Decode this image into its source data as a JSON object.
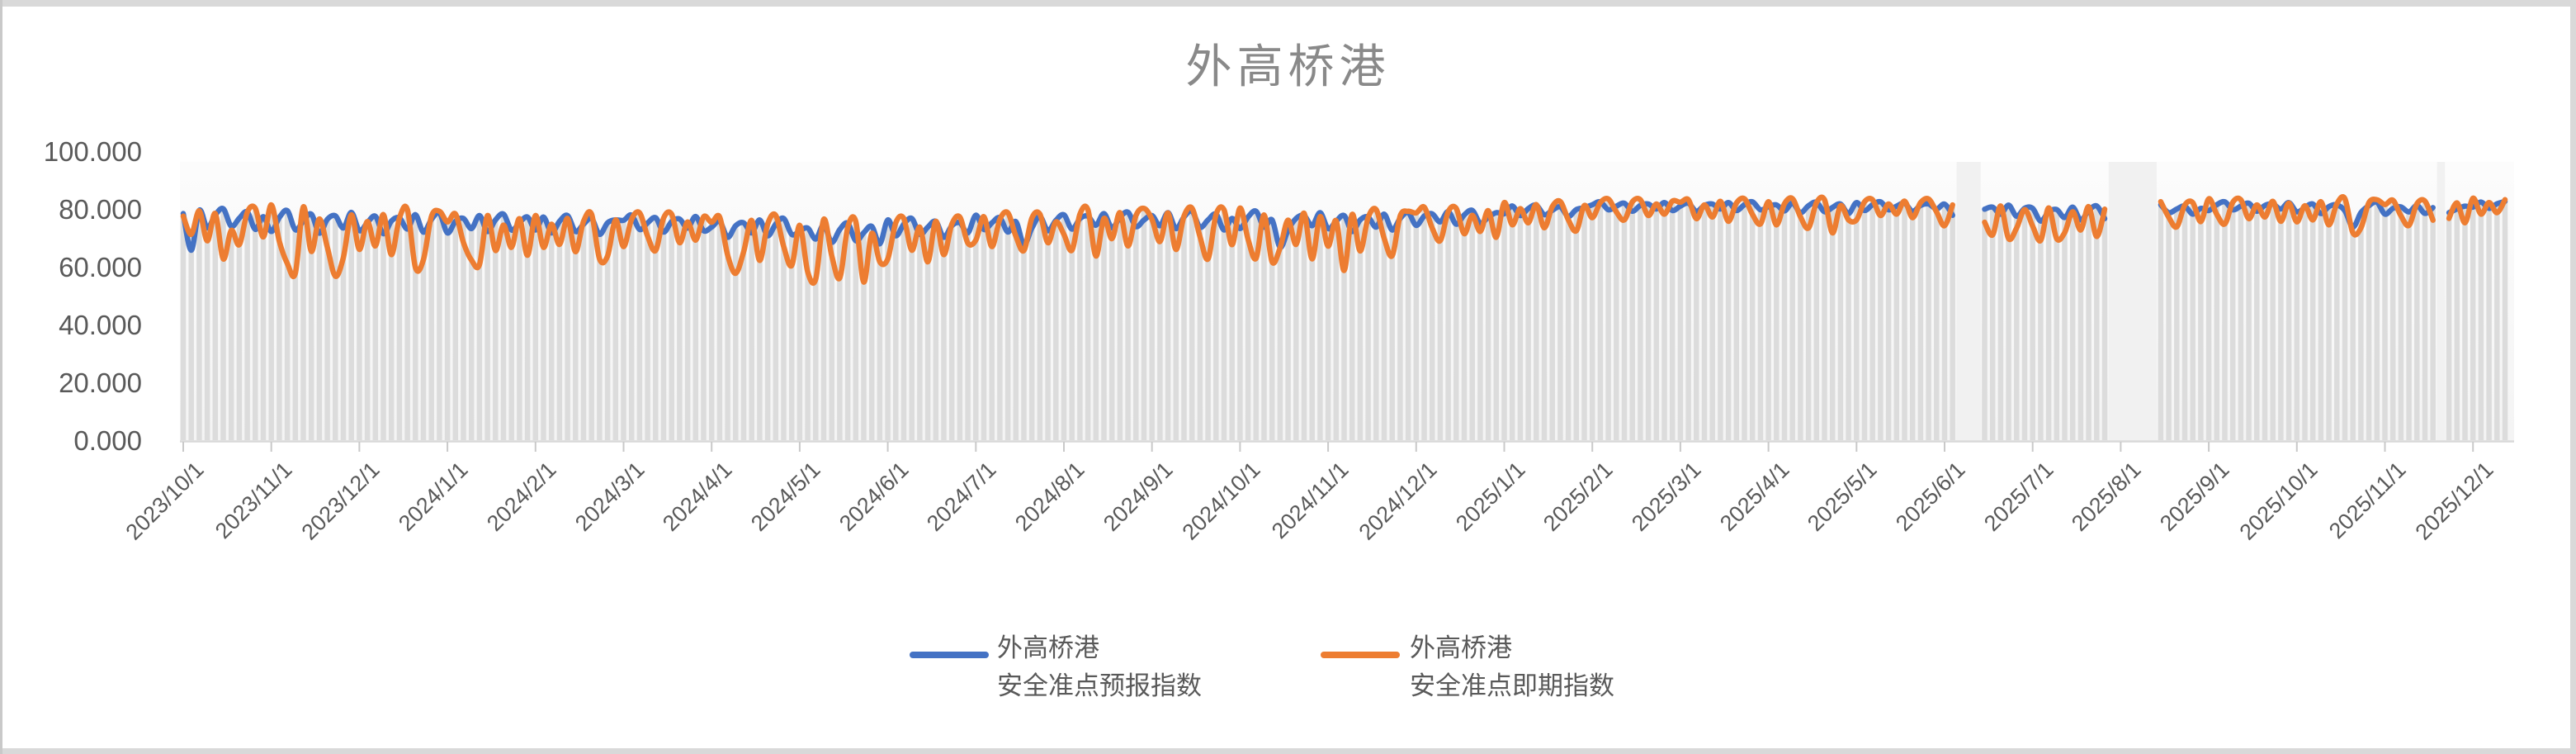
{
  "window": {
    "surface": "excel-embedded-chart"
  },
  "chart_data": {
    "type": "line",
    "title": "外高桥港",
    "ylim": [
      0,
      100
    ],
    "yticks": [
      "0.000",
      "20.000",
      "40.000",
      "60.000",
      "80.000",
      "100.000"
    ],
    "grid": "off",
    "legend_position": "bottom",
    "x_months": [
      "2023/10/1",
      "2023/11/1",
      "2023/12/1",
      "2024/1/1",
      "2024/2/1",
      "2024/3/1",
      "2024/4/1",
      "2024/5/1",
      "2024/6/1",
      "2024/7/1",
      "2024/8/1",
      "2024/9/1",
      "2024/10/1",
      "2024/11/1",
      "2024/12/1",
      "2025/1/1",
      "2025/2/1",
      "2025/3/1",
      "2025/4/1",
      "2025/5/1",
      "2025/6/1",
      "2025/7/1",
      "2025/8/1",
      "2025/9/1",
      "2025/10/1",
      "2025/11/1",
      "2025/12/1"
    ],
    "points_per_month": 11,
    "last_month_points": 5,
    "axis_color": "#d9d9d9",
    "tick_color": "#c9c9c9",
    "droplines": {
      "color": "#dcdcdc",
      "width": 6.5
    },
    "gap_fill": "#f1f1f1",
    "gaps_point_ranges": [
      [
        222,
        224
      ],
      [
        241,
        246
      ],
      [
        282,
        282
      ]
    ],
    "series": [
      {
        "name": "外高桥港 安全准点预报指数",
        "color": "#4472C4",
        "monthly_base": [
          76.5,
          75.5,
          75,
          75,
          74.5,
          75,
          73.5,
          71.5,
          73.5,
          75,
          76,
          76,
          76,
          75.5,
          77,
          79.5,
          81,
          81,
          80.5,
          81,
          79.5,
          78.5,
          80,
          81,
          80.5,
          80,
          81.5
        ],
        "monthly_amp": [
          1.1,
          1.2,
          1.1,
          1.0,
          1.0,
          0.9,
          1.0,
          1.1,
          1.0,
          0.9,
          0.9,
          1.0,
          1.0,
          1.0,
          0.8,
          0.6,
          0.5,
          0.5,
          0.6,
          0.5,
          0.7,
          0.8,
          0.5,
          0.5,
          0.6,
          0.5,
          0.4
        ],
        "pattern": [
          2.0,
          -1.5,
          3.0,
          -2.5,
          1.5,
          3.5,
          -2.0,
          0.5,
          2.5,
          -3.0,
          1.0
        ],
        "pattern_rotate": 3,
        "dips": [
          [
            0,
            1,
            66
          ],
          [
            9,
            6,
            68
          ],
          [
            12,
            5,
            67
          ],
          [
            24,
            7,
            74
          ]
        ]
      },
      {
        "name": "外高桥港 安全准点即期指数",
        "color": "#ED7D31",
        "monthly_base": [
          76,
          74,
          73.5,
          72.5,
          73,
          74,
          71.5,
          69,
          72,
          74,
          75,
          74.5,
          74,
          74,
          76.5,
          79,
          81,
          80.5,
          80,
          81,
          78.5,
          77.5,
          79.5,
          80.5,
          80,
          80,
          81.5
        ],
        "monthly_amp": [
          0.9,
          1.4,
          1.2,
          1.1,
          1.0,
          0.9,
          1.2,
          1.4,
          1.0,
          0.9,
          1.0,
          1.1,
          1.2,
          1.1,
          0.8,
          0.7,
          0.5,
          0.6,
          0.7,
          0.5,
          0.8,
          0.9,
          0.6,
          0.6,
          0.7,
          0.6,
          0.5
        ],
        "pattern": [
          2.0,
          -5.0,
          4.0,
          -7.5,
          3.0,
          5.5,
          -3.5,
          -9.0,
          3.5,
          5.0,
          -6.0
        ],
        "pattern_rotate": 5,
        "dips": [
          [
            0,
            5,
            63
          ],
          [
            1,
            3,
            58
          ],
          [
            1,
            8,
            57
          ],
          [
            2,
            7,
            60
          ],
          [
            3,
            4,
            61
          ],
          [
            4,
            8,
            63
          ],
          [
            6,
            3,
            58
          ],
          [
            7,
            2,
            56
          ],
          [
            7,
            8,
            55
          ],
          [
            8,
            5,
            62
          ],
          [
            10,
            4,
            64
          ],
          [
            11,
            7,
            63
          ],
          [
            12,
            4,
            62
          ],
          [
            12,
            9,
            63
          ],
          [
            13,
            2,
            59
          ],
          [
            18,
            8,
            72
          ],
          [
            20,
            8,
            70
          ],
          [
            21,
            3,
            70
          ],
          [
            24,
            7,
            72
          ]
        ]
      }
    ]
  },
  "legend": {
    "items": [
      {
        "label_line1": "外高桥港",
        "label_line2": "安全准点预报指数",
        "color": "#4472C4"
      },
      {
        "label_line1": "外高桥港",
        "label_line2": "安全准点即期指数",
        "color": "#ED7D31"
      }
    ]
  }
}
